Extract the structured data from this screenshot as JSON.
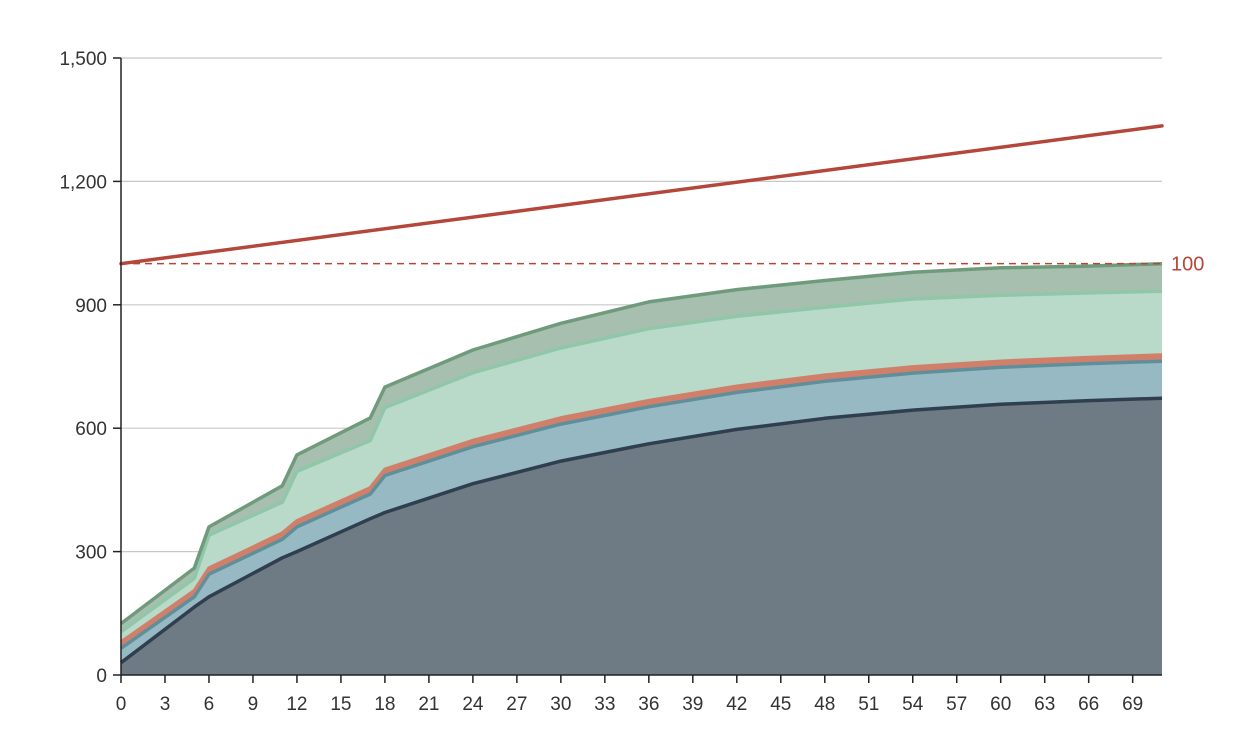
{
  "chart_data": {
    "type": "area",
    "x_ticks": [
      0,
      3,
      6,
      9,
      12,
      15,
      18,
      21,
      24,
      27,
      30,
      33,
      36,
      39,
      42,
      45,
      48,
      51,
      54,
      57,
      60,
      63,
      66,
      69
    ],
    "y_ticks": [
      0,
      300,
      600,
      900,
      1200,
      1500
    ],
    "y_tick_labels": [
      "0",
      "300",
      "600",
      "900",
      "1,200",
      "1,500"
    ],
    "xlim": [
      0,
      71
    ],
    "ylim": [
      0,
      1500
    ],
    "grid": "horizontal",
    "stacked": true,
    "x": [
      0,
      5,
      6,
      11,
      12,
      17,
      18,
      24,
      30,
      36,
      42,
      48,
      54,
      60,
      66,
      71
    ],
    "series": [
      {
        "color": "#2f3f4f",
        "fill": "#6e7b85",
        "values": [
          30,
          165,
          190,
          285,
          300,
          380,
          395,
          465,
          520,
          562,
          597,
          624,
          644,
          658,
          667,
          673
        ]
      },
      {
        "color": "#5f8f9a",
        "fill": "#97b9c3",
        "values": [
          35,
          25,
          55,
          45,
          60,
          60,
          90,
          90,
          90,
          90,
          90,
          90,
          90,
          90,
          90,
          90
        ]
      },
      {
        "color": "#d0806a",
        "fill": "#d0806a",
        "values": [
          15,
          15,
          15,
          15,
          15,
          15,
          15,
          15,
          15,
          15,
          15,
          15,
          15,
          15,
          15,
          15
        ]
      },
      {
        "color": "#8fc7a8",
        "fill": "#b9d9c9",
        "values": [
          25,
          30,
          80,
          75,
          120,
          115,
          150,
          165,
          170,
          175,
          170,
          165,
          165,
          160,
          157,
          155
        ]
      },
      {
        "color": "#6f9b7c",
        "fill": "#a7bfae",
        "values": [
          20,
          25,
          20,
          40,
          40,
          55,
          50,
          55,
          60,
          65,
          65,
          65,
          65,
          67,
          65,
          67
        ]
      }
    ],
    "trend_line": {
      "color": "#b5463a",
      "x": [
        0,
        71
      ],
      "values": [
        1000,
        1335
      ]
    },
    "reference_line": {
      "value": 1000,
      "label": "100",
      "color": "#b5463a",
      "style": "dashed"
    },
    "axis_color": "#222222",
    "grid_color": "#c8c8c8"
  }
}
